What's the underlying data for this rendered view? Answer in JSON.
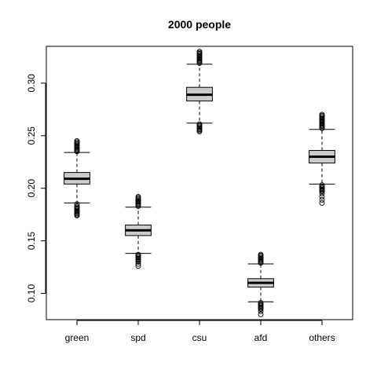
{
  "chart_data": {
    "type": "boxplot",
    "title": "2000  people",
    "xlabel": "",
    "ylabel": "",
    "categories": [
      "green",
      "spd",
      "csu",
      "afd",
      "others"
    ],
    "ylim": [
      0.075,
      0.335
    ],
    "yticks": [
      "0.10",
      "0.15",
      "0.20",
      "0.25",
      "0.30"
    ],
    "boxes": [
      {
        "name": "green",
        "whisker_low": 0.186,
        "q1": 0.204,
        "median": 0.209,
        "q3": 0.215,
        "whisker_high": 0.234,
        "outliers_low": [
          0.185,
          0.183,
          0.182,
          0.181,
          0.18,
          0.179,
          0.178,
          0.177,
          0.176,
          0.175,
          0.174
        ],
        "outliers_high": [
          0.235,
          0.236,
          0.237,
          0.238,
          0.239,
          0.24,
          0.241,
          0.242,
          0.243,
          0.244,
          0.245
        ]
      },
      {
        "name": "spd",
        "whisker_low": 0.138,
        "q1": 0.155,
        "median": 0.16,
        "q3": 0.165,
        "whisker_high": 0.182,
        "outliers_low": [
          0.137,
          0.136,
          0.135,
          0.134,
          0.133,
          0.132,
          0.131,
          0.13,
          0.128,
          0.126
        ],
        "outliers_high": [
          0.183,
          0.184,
          0.185,
          0.186,
          0.187,
          0.188,
          0.189,
          0.19,
          0.191,
          0.192
        ]
      },
      {
        "name": "csu",
        "whisker_low": 0.262,
        "q1": 0.283,
        "median": 0.289,
        "q3": 0.296,
        "whisker_high": 0.318,
        "outliers_low": [
          0.261,
          0.26,
          0.259,
          0.258,
          0.257,
          0.256,
          0.255,
          0.254
        ],
        "outliers_high": [
          0.319,
          0.32,
          0.321,
          0.322,
          0.323,
          0.324,
          0.325,
          0.326,
          0.327,
          0.328,
          0.329,
          0.33
        ]
      },
      {
        "name": "afd",
        "whisker_low": 0.092,
        "q1": 0.106,
        "median": 0.11,
        "q3": 0.114,
        "whisker_high": 0.128,
        "outliers_low": [
          0.091,
          0.09,
          0.089,
          0.088,
          0.087,
          0.086,
          0.085,
          0.083,
          0.08
        ],
        "outliers_high": [
          0.129,
          0.13,
          0.131,
          0.132,
          0.133,
          0.134,
          0.135,
          0.136,
          0.137
        ]
      },
      {
        "name": "others",
        "whisker_low": 0.204,
        "q1": 0.224,
        "median": 0.23,
        "q3": 0.236,
        "whisker_high": 0.256,
        "outliers_low": [
          0.203,
          0.202,
          0.201,
          0.2,
          0.199,
          0.198,
          0.197,
          0.195,
          0.192,
          0.189,
          0.186
        ],
        "outliers_high": [
          0.257,
          0.258,
          0.259,
          0.26,
          0.261,
          0.262,
          0.263,
          0.264,
          0.265,
          0.266,
          0.267,
          0.268,
          0.269,
          0.27
        ]
      }
    ],
    "box_fill": "#cccccc",
    "grid": false,
    "legend": "none"
  }
}
